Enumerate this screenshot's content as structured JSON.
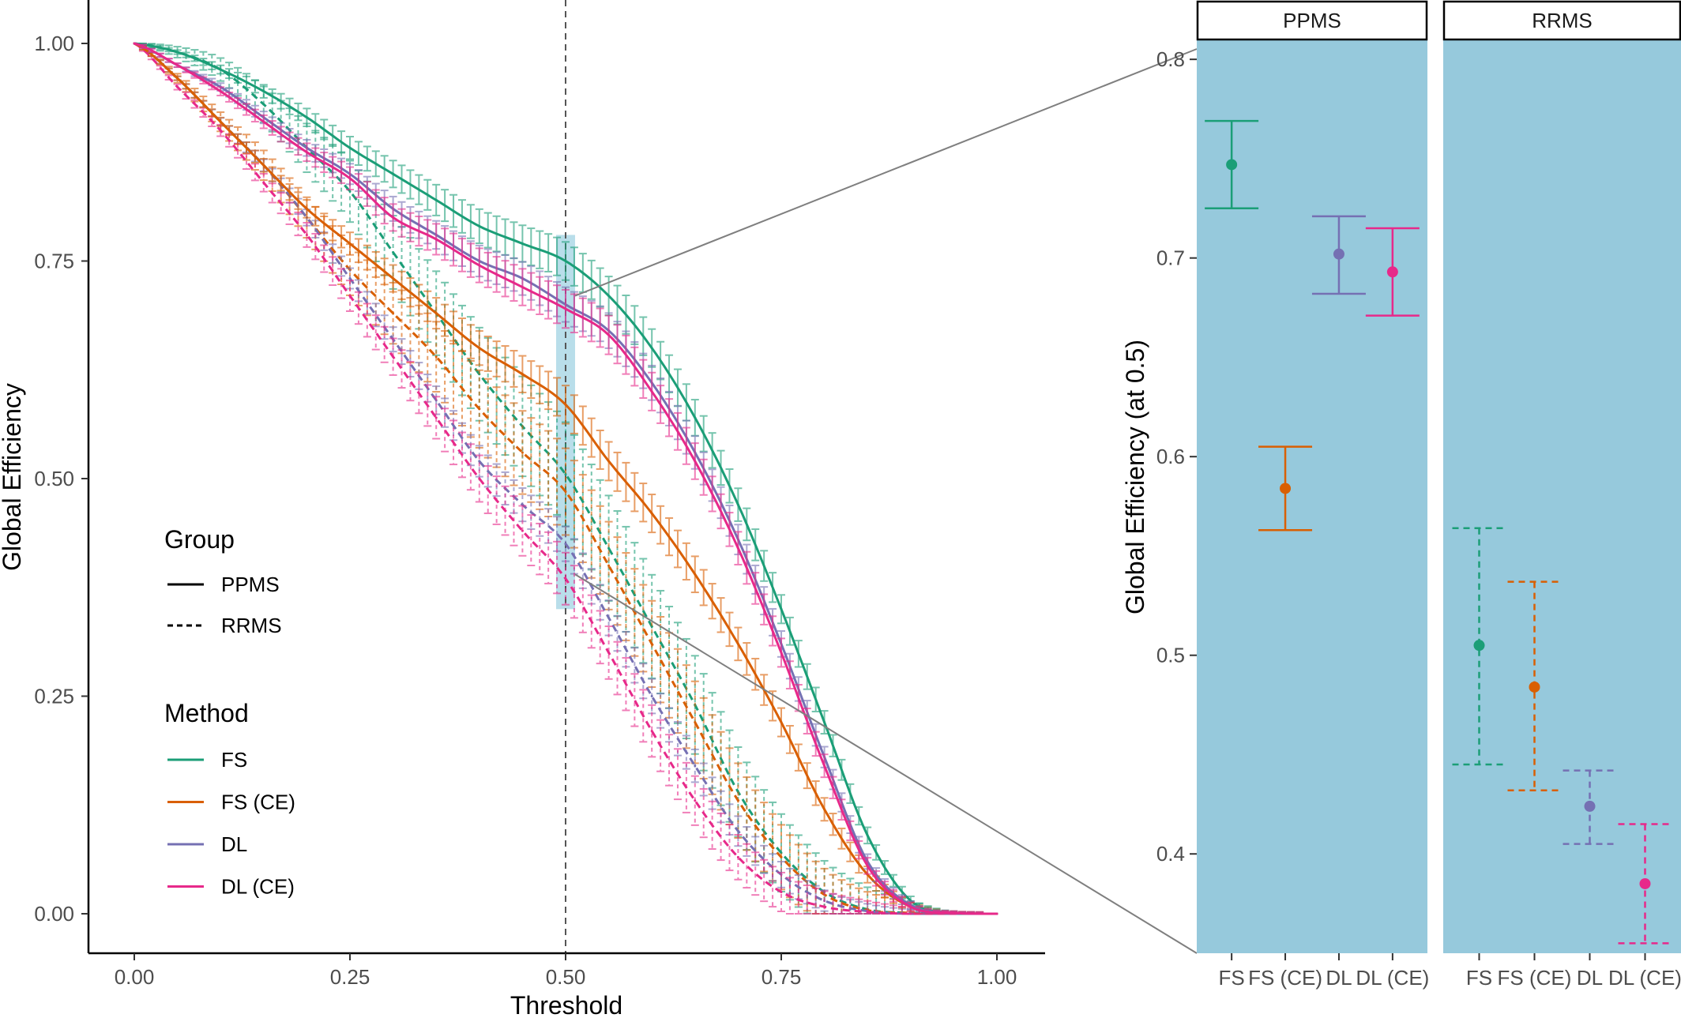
{
  "colors": {
    "FS": "#1b9e77",
    "FS (CE)": "#d95f02",
    "DL": "#7570b3",
    "DL (CE)": "#e7298a",
    "panel_background": "#96c9dc",
    "highlight": "#add8e6",
    "connector": "#7f7f7f"
  },
  "chart_data": [
    {
      "type": "line",
      "xlabel": "Threshold",
      "ylabel": "Global Efficiency",
      "xlim": [
        0,
        1
      ],
      "ylim": [
        0,
        1
      ],
      "x_ticks": [
        "0.00",
        "0.25",
        "0.50",
        "0.75",
        "1.00"
      ],
      "y_ticks": [
        "0.00",
        "0.25",
        "0.50",
        "0.75",
        "1.00"
      ],
      "reference_line": {
        "x": 0.5,
        "style": "dashed"
      },
      "highlight_band": {
        "x": 0.5,
        "y_range": [
          0.35,
          0.78
        ]
      },
      "grid": false,
      "error_bars": true,
      "legend": {
        "placement": "left-middle",
        "group_title": "Group",
        "groups": [
          {
            "name": "PPMS",
            "linetype": "solid"
          },
          {
            "name": "RRMS",
            "linetype": "dashed"
          }
        ],
        "method_title": "Method",
        "methods": [
          "FS",
          "FS (CE)",
          "DL",
          "DL (CE)"
        ]
      },
      "x": [
        0.0,
        0.05,
        0.1,
        0.15,
        0.2,
        0.25,
        0.3,
        0.35,
        0.4,
        0.45,
        0.5,
        0.55,
        0.6,
        0.65,
        0.7,
        0.75,
        0.8,
        0.85,
        0.9,
        0.95,
        1.0
      ],
      "series": [
        {
          "method": "FS",
          "group": "PPMS",
          "linetype": "solid",
          "error": 0.022,
          "values": [
            1.0,
            0.99,
            0.97,
            0.945,
            0.915,
            0.88,
            0.85,
            0.82,
            0.79,
            0.77,
            0.75,
            0.71,
            0.65,
            0.57,
            0.47,
            0.35,
            0.22,
            0.09,
            0.015,
            0.001,
            0.0
          ]
        },
        {
          "method": "FS (CE)",
          "group": "PPMS",
          "linetype": "solid",
          "error": 0.022,
          "values": [
            1.0,
            0.96,
            0.91,
            0.86,
            0.81,
            0.77,
            0.73,
            0.69,
            0.65,
            0.62,
            0.585,
            0.52,
            0.46,
            0.39,
            0.31,
            0.22,
            0.12,
            0.045,
            0.008,
            0.001,
            0.0
          ]
        },
        {
          "method": "DL",
          "group": "PPMS",
          "linetype": "solid",
          "error": 0.02,
          "values": [
            1.0,
            0.975,
            0.95,
            0.915,
            0.88,
            0.85,
            0.81,
            0.78,
            0.75,
            0.73,
            0.7,
            0.67,
            0.61,
            0.53,
            0.43,
            0.31,
            0.18,
            0.06,
            0.01,
            0.001,
            0.0
          ]
        },
        {
          "method": "DL (CE)",
          "group": "PPMS",
          "linetype": "solid",
          "error": 0.022,
          "values": [
            1.0,
            0.975,
            0.945,
            0.91,
            0.875,
            0.845,
            0.8,
            0.775,
            0.745,
            0.72,
            0.695,
            0.665,
            0.6,
            0.52,
            0.42,
            0.3,
            0.17,
            0.055,
            0.008,
            0.001,
            0.0
          ]
        },
        {
          "method": "FS",
          "group": "RRMS",
          "linetype": "dashed",
          "error": 0.06,
          "values": [
            1.0,
            0.99,
            0.97,
            0.93,
            0.88,
            0.83,
            0.76,
            0.69,
            0.62,
            0.56,
            0.505,
            0.42,
            0.33,
            0.24,
            0.14,
            0.07,
            0.025,
            0.005,
            0.001,
            0.0,
            0.0
          ]
        },
        {
          "method": "FS (CE)",
          "group": "RRMS",
          "linetype": "dashed",
          "error": 0.05,
          "values": [
            1.0,
            0.96,
            0.91,
            0.86,
            0.8,
            0.74,
            0.69,
            0.64,
            0.58,
            0.53,
            0.485,
            0.4,
            0.31,
            0.22,
            0.13,
            0.065,
            0.022,
            0.004,
            0.001,
            0.0,
            0.0
          ]
        },
        {
          "method": "DL",
          "group": "RRMS",
          "linetype": "dashed",
          "error": 0.02,
          "values": [
            1.0,
            0.96,
            0.91,
            0.86,
            0.8,
            0.73,
            0.66,
            0.59,
            0.52,
            0.47,
            0.425,
            0.34,
            0.25,
            0.17,
            0.095,
            0.045,
            0.015,
            0.003,
            0.0,
            0.0,
            0.0
          ]
        },
        {
          "method": "DL (CE)",
          "group": "RRMS",
          "linetype": "dashed",
          "error": 0.03,
          "values": [
            1.0,
            0.95,
            0.9,
            0.84,
            0.78,
            0.71,
            0.64,
            0.57,
            0.5,
            0.44,
            0.385,
            0.3,
            0.21,
            0.13,
            0.065,
            0.025,
            0.008,
            0.002,
            0.0,
            0.0,
            0.0
          ]
        }
      ]
    },
    {
      "type": "scatter",
      "ylabel": "Global Efficiency (at 0.5)",
      "ylim": [
        0.35,
        0.81
      ],
      "y_ticks": [
        "0.4",
        "0.5",
        "0.6",
        "0.7",
        "0.8"
      ],
      "categories": [
        "FS",
        "FS (CE)",
        "DL",
        "DL (CE)"
      ],
      "error_bars": true,
      "grid": false,
      "facets": [
        {
          "label": "PPMS",
          "linetype": "solid",
          "points": [
            {
              "method": "FS",
              "mean": 0.747,
              "lower": 0.725,
              "upper": 0.769
            },
            {
              "method": "FS (CE)",
              "mean": 0.584,
              "lower": 0.563,
              "upper": 0.605
            },
            {
              "method": "DL",
              "mean": 0.702,
              "lower": 0.682,
              "upper": 0.721
            },
            {
              "method": "DL (CE)",
              "mean": 0.693,
              "lower": 0.671,
              "upper": 0.715
            }
          ]
        },
        {
          "label": "RRMS",
          "linetype": "dashed",
          "points": [
            {
              "method": "FS",
              "mean": 0.505,
              "lower": 0.445,
              "upper": 0.564
            },
            {
              "method": "FS (CE)",
              "mean": 0.484,
              "lower": 0.432,
              "upper": 0.537
            },
            {
              "method": "DL",
              "mean": 0.424,
              "lower": 0.405,
              "upper": 0.442
            },
            {
              "method": "DL (CE)",
              "mean": 0.385,
              "lower": 0.355,
              "upper": 0.415
            }
          ]
        }
      ]
    }
  ]
}
